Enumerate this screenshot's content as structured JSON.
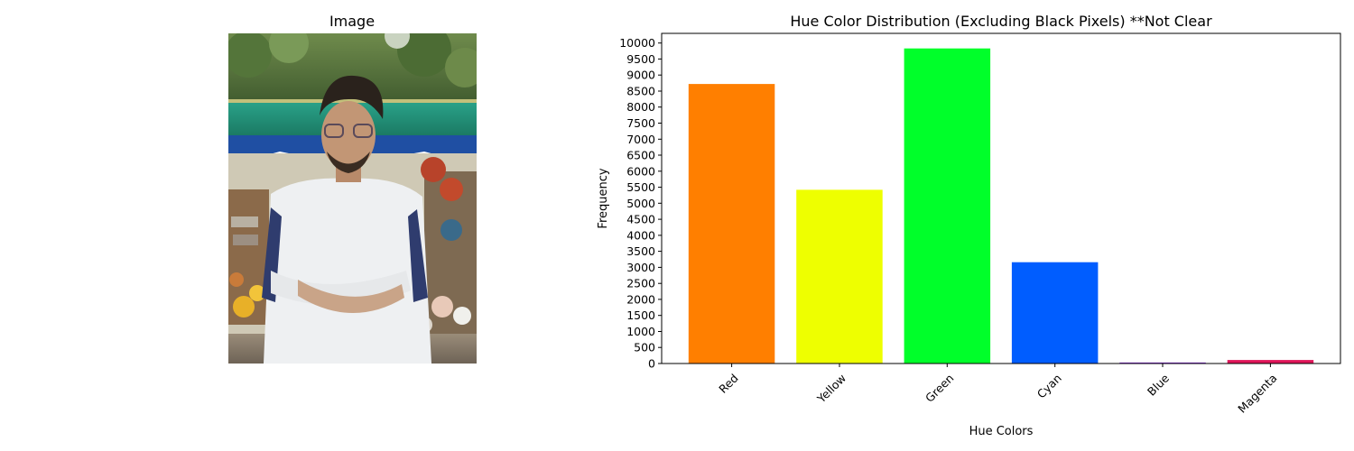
{
  "left_panel": {
    "title": "Image"
  },
  "chart_data": {
    "type": "bar",
    "title": "Hue Color Distribution (Excluding Black Pixels) **Not Clear",
    "xlabel": "Hue Colors",
    "ylabel": "Frequency",
    "categories": [
      "Red",
      "Yellow",
      "Green",
      "Cyan",
      "Blue",
      "Magenta"
    ],
    "values": [
      8720,
      5420,
      9830,
      3160,
      30,
      110
    ],
    "colors": [
      "#ff7f00",
      "#eeff00",
      "#00ff2a",
      "#005dff",
      "#8a2be2",
      "#e0165a"
    ],
    "ylim": [
      0,
      10300
    ],
    "yticks": [
      0,
      500,
      1000,
      1500,
      2000,
      2500,
      3000,
      3500,
      4000,
      4500,
      5000,
      5500,
      6000,
      6500,
      7000,
      7500,
      8000,
      8500,
      9000,
      9500,
      10000
    ],
    "grid": false,
    "legend": "none"
  }
}
